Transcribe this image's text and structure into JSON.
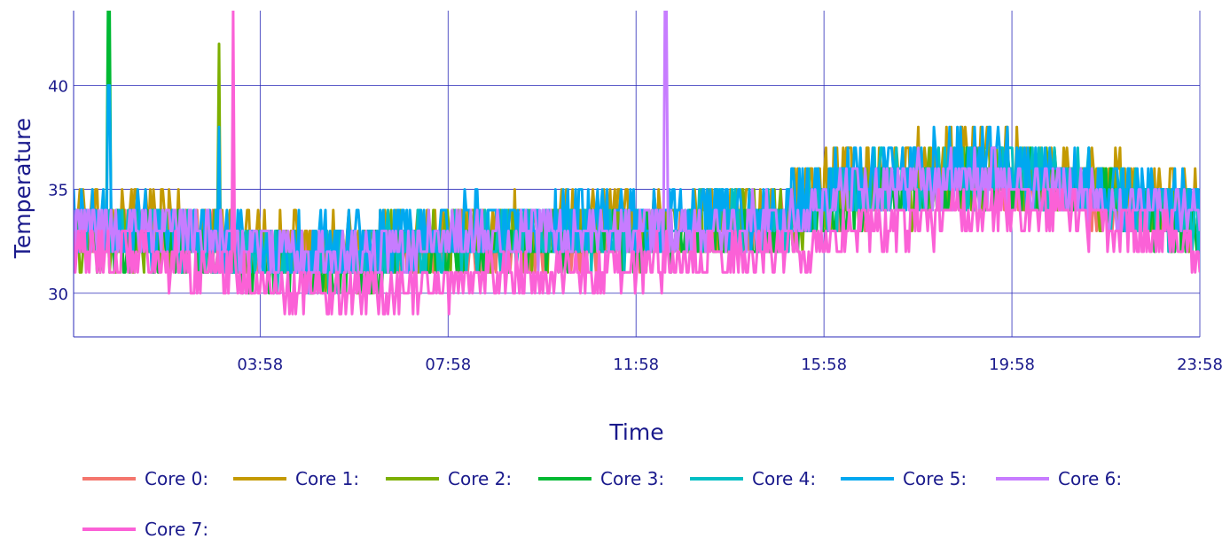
{
  "chart_data": {
    "type": "line",
    "title": "",
    "xlabel": "Time",
    "ylabel": "Temperature",
    "x_range_hours": [
      0.0,
      23.97
    ],
    "ylim": [
      27.9,
      43.6
    ],
    "x_ticks": [
      {
        "t": 3.97,
        "label": "03:58"
      },
      {
        "t": 7.97,
        "label": "07:58"
      },
      {
        "t": 11.97,
        "label": "11:58"
      },
      {
        "t": 15.97,
        "label": "15:58"
      },
      {
        "t": 19.97,
        "label": "19:58"
      },
      {
        "t": 23.97,
        "label": "23:58"
      }
    ],
    "y_ticks": [
      30,
      35,
      40
    ],
    "grid": true,
    "legend_position": "bottom",
    "series": [
      {
        "name": "Core 0:",
        "color": "#f4766d",
        "spikes": [],
        "profile": [
          {
            "t": 0.0,
            "y": 33.0
          },
          {
            "t": 2.0,
            "y": 33.0
          },
          {
            "t": 3.5,
            "y": 32.0
          },
          {
            "t": 5.0,
            "y": 31.5
          },
          {
            "t": 8.0,
            "y": 32.0
          },
          {
            "t": 12.0,
            "y": 32.5
          },
          {
            "t": 15.0,
            "y": 33.5
          },
          {
            "t": 16.5,
            "y": 34.5
          },
          {
            "t": 19.5,
            "y": 35.5
          },
          {
            "t": 21.0,
            "y": 35.0
          },
          {
            "t": 23.97,
            "y": 33.0
          }
        ],
        "amplitude": 1.3
      },
      {
        "name": "Core 1:",
        "color": "#c49a00",
        "spikes": [],
        "profile": [
          {
            "t": 0.0,
            "y": 33.5
          },
          {
            "t": 2.0,
            "y": 33.5
          },
          {
            "t": 3.5,
            "y": 33.0
          },
          {
            "t": 5.0,
            "y": 32.0
          },
          {
            "t": 8.0,
            "y": 33.0
          },
          {
            "t": 12.0,
            "y": 33.5
          },
          {
            "t": 15.0,
            "y": 34.0
          },
          {
            "t": 16.5,
            "y": 35.5
          },
          {
            "t": 19.5,
            "y": 36.5
          },
          {
            "t": 21.0,
            "y": 35.5
          },
          {
            "t": 23.97,
            "y": 34.5
          }
        ],
        "amplitude": 1.6
      },
      {
        "name": "Core 2:",
        "color": "#7caf00",
        "spikes": [
          {
            "t": 3.1,
            "y": 42.0
          }
        ],
        "profile": [
          {
            "t": 0.0,
            "y": 32.5
          },
          {
            "t": 2.0,
            "y": 32.5
          },
          {
            "t": 3.5,
            "y": 32.0
          },
          {
            "t": 5.0,
            "y": 31.5
          },
          {
            "t": 8.0,
            "y": 32.5
          },
          {
            "t": 12.0,
            "y": 33.0
          },
          {
            "t": 15.0,
            "y": 33.5
          },
          {
            "t": 16.5,
            "y": 34.5
          },
          {
            "t": 19.5,
            "y": 35.5
          },
          {
            "t": 21.0,
            "y": 35.0
          },
          {
            "t": 23.97,
            "y": 33.5
          }
        ],
        "amplitude": 1.5
      },
      {
        "name": "Core 3:",
        "color": "#00b933",
        "spikes": [
          {
            "t": 0.75,
            "y": 43.6
          }
        ],
        "profile": [
          {
            "t": 0.0,
            "y": 32.5
          },
          {
            "t": 2.0,
            "y": 32.5
          },
          {
            "t": 3.5,
            "y": 31.5
          },
          {
            "t": 5.0,
            "y": 31.0
          },
          {
            "t": 8.0,
            "y": 32.0
          },
          {
            "t": 12.0,
            "y": 32.5
          },
          {
            "t": 15.0,
            "y": 33.0
          },
          {
            "t": 16.5,
            "y": 34.5
          },
          {
            "t": 19.5,
            "y": 35.5
          },
          {
            "t": 21.0,
            "y": 35.0
          },
          {
            "t": 23.97,
            "y": 33.0
          }
        ],
        "amplitude": 1.4
      },
      {
        "name": "Core 4:",
        "color": "#00bfc4",
        "spikes": [],
        "profile": [
          {
            "t": 0.0,
            "y": 33.0
          },
          {
            "t": 2.0,
            "y": 33.0
          },
          {
            "t": 3.5,
            "y": 32.0
          },
          {
            "t": 5.0,
            "y": 31.5
          },
          {
            "t": 8.0,
            "y": 32.5
          },
          {
            "t": 12.0,
            "y": 33.0
          },
          {
            "t": 15.0,
            "y": 33.5
          },
          {
            "t": 16.5,
            "y": 35.0
          },
          {
            "t": 19.5,
            "y": 36.0
          },
          {
            "t": 21.0,
            "y": 35.5
          },
          {
            "t": 23.97,
            "y": 33.5
          }
        ],
        "amplitude": 1.5
      },
      {
        "name": "Core 5:",
        "color": "#00a8f0",
        "spikes": [
          {
            "t": 0.75,
            "y": 40.0
          },
          {
            "t": 3.1,
            "y": 38.0
          }
        ],
        "profile": [
          {
            "t": 0.0,
            "y": 33.5
          },
          {
            "t": 2.0,
            "y": 33.0
          },
          {
            "t": 3.5,
            "y": 32.5
          },
          {
            "t": 5.0,
            "y": 32.0
          },
          {
            "t": 8.0,
            "y": 33.0
          },
          {
            "t": 12.0,
            "y": 33.5
          },
          {
            "t": 15.0,
            "y": 34.0
          },
          {
            "t": 16.5,
            "y": 35.5
          },
          {
            "t": 19.5,
            "y": 36.5
          },
          {
            "t": 21.0,
            "y": 35.5
          },
          {
            "t": 23.97,
            "y": 34.0
          }
        ],
        "amplitude": 1.6
      },
      {
        "name": "Core 6:",
        "color": "#c77cff",
        "spikes": [
          {
            "t": 12.6,
            "y": 43.6
          },
          {
            "t": 3.4,
            "y": 36.0
          }
        ],
        "profile": [
          {
            "t": 0.0,
            "y": 33.0
          },
          {
            "t": 2.0,
            "y": 33.0
          },
          {
            "t": 3.5,
            "y": 32.5
          },
          {
            "t": 5.0,
            "y": 31.5
          },
          {
            "t": 8.0,
            "y": 32.5
          },
          {
            "t": 12.0,
            "y": 33.0
          },
          {
            "t": 15.0,
            "y": 33.5
          },
          {
            "t": 16.5,
            "y": 35.0
          },
          {
            "t": 19.5,
            "y": 35.5
          },
          {
            "t": 21.0,
            "y": 35.0
          },
          {
            "t": 23.97,
            "y": 33.5
          }
        ],
        "amplitude": 1.3
      },
      {
        "name": "Core 7:",
        "color": "#fb61d7",
        "spikes": [
          {
            "t": 3.4,
            "y": 43.6
          }
        ],
        "profile": [
          {
            "t": 0.0,
            "y": 32.0
          },
          {
            "t": 2.0,
            "y": 31.5
          },
          {
            "t": 3.5,
            "y": 31.0
          },
          {
            "t": 5.0,
            "y": 30.0
          },
          {
            "t": 8.0,
            "y": 30.5
          },
          {
            "t": 12.0,
            "y": 31.5
          },
          {
            "t": 15.0,
            "y": 32.0
          },
          {
            "t": 16.5,
            "y": 33.0
          },
          {
            "t": 19.5,
            "y": 34.0
          },
          {
            "t": 21.0,
            "y": 34.0
          },
          {
            "t": 23.97,
            "y": 32.0
          }
        ],
        "amplitude": 1.2
      }
    ]
  }
}
